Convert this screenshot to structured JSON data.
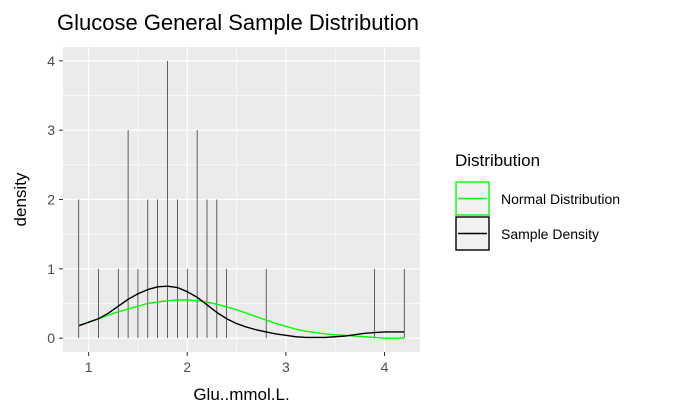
{
  "chart_data": {
    "type": "line",
    "title": "Glucose General Sample Distribution",
    "xlabel": "Glu..mmol.L.",
    "ylabel": "density",
    "xlim": [
      0.74,
      4.36
    ],
    "ylim": [
      -0.2,
      4.2
    ],
    "x_ticks": [
      1,
      2,
      3,
      4
    ],
    "y_ticks": [
      0,
      1,
      2,
      3,
      4
    ],
    "grid": true,
    "background": "#ebebeb",
    "legend": {
      "title": "Distribution",
      "placement": "right",
      "entries": [
        {
          "name": "Normal Distribution",
          "color": "#00ff00"
        },
        {
          "name": "Sample Density",
          "color": "#000000"
        }
      ]
    },
    "spikes": {
      "color": "#000000",
      "points": [
        {
          "x": 0.9,
          "y": 2
        },
        {
          "x": 1.1,
          "y": 1
        },
        {
          "x": 1.3,
          "y": 1
        },
        {
          "x": 1.4,
          "y": 3
        },
        {
          "x": 1.5,
          "y": 1
        },
        {
          "x": 1.6,
          "y": 2
        },
        {
          "x": 1.7,
          "y": 2
        },
        {
          "x": 1.8,
          "y": 4
        },
        {
          "x": 1.9,
          "y": 2
        },
        {
          "x": 2.0,
          "y": 1
        },
        {
          "x": 2.1,
          "y": 3
        },
        {
          "x": 2.2,
          "y": 2
        },
        {
          "x": 2.3,
          "y": 2
        },
        {
          "x": 2.4,
          "y": 1
        },
        {
          "x": 2.8,
          "y": 1
        },
        {
          "x": 3.9,
          "y": 1
        },
        {
          "x": 4.2,
          "y": 1
        }
      ]
    },
    "series": [
      {
        "name": "Normal Distribution",
        "color": "#00ff00",
        "x": [
          0.9,
          1.0,
          1.1,
          1.2,
          1.3,
          1.4,
          1.5,
          1.6,
          1.7,
          1.8,
          1.9,
          2.0,
          2.1,
          2.2,
          2.3,
          2.4,
          2.5,
          2.6,
          2.7,
          2.8,
          2.9,
          3.0,
          3.1,
          3.2,
          3.3,
          3.4,
          3.5,
          3.6,
          3.7,
          3.8,
          3.9,
          4.0,
          4.1,
          4.2
        ],
        "y": [
          0.18,
          0.23,
          0.28,
          0.33,
          0.38,
          0.42,
          0.46,
          0.5,
          0.52,
          0.54,
          0.55,
          0.55,
          0.54,
          0.52,
          0.49,
          0.45,
          0.41,
          0.36,
          0.31,
          0.26,
          0.21,
          0.17,
          0.13,
          0.1,
          0.08,
          0.06,
          0.05,
          0.04,
          0.03,
          0.02,
          0.01,
          0.0,
          0.0,
          0.0
        ]
      },
      {
        "name": "Sample Density",
        "color": "#000000",
        "x": [
          0.9,
          1.0,
          1.1,
          1.2,
          1.3,
          1.4,
          1.5,
          1.6,
          1.7,
          1.8,
          1.9,
          2.0,
          2.1,
          2.2,
          2.3,
          2.4,
          2.5,
          2.6,
          2.7,
          2.8,
          2.9,
          3.0,
          3.1,
          3.2,
          3.3,
          3.4,
          3.5,
          3.6,
          3.7,
          3.8,
          3.9,
          4.0,
          4.1,
          4.2
        ],
        "y": [
          0.18,
          0.23,
          0.28,
          0.36,
          0.46,
          0.56,
          0.64,
          0.7,
          0.74,
          0.75,
          0.73,
          0.67,
          0.59,
          0.48,
          0.37,
          0.28,
          0.21,
          0.16,
          0.12,
          0.09,
          0.06,
          0.04,
          0.02,
          0.01,
          0.01,
          0.01,
          0.02,
          0.03,
          0.05,
          0.07,
          0.08,
          0.09,
          0.09,
          0.09
        ]
      }
    ]
  }
}
